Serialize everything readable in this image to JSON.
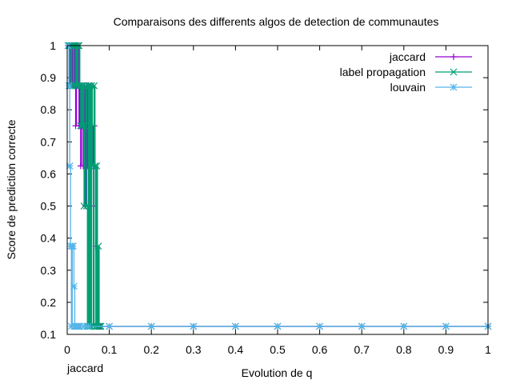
{
  "chart_data": {
    "type": "line",
    "title": "Comparaisons des differents algos de detection de communautes",
    "xlabel": "Evolution de q",
    "ylabel": "Score de prediction correcte",
    "bottom_note": "jaccard",
    "xlim": [
      0,
      1
    ],
    "ylim": [
      0.1,
      1
    ],
    "x_ticks": [
      "0",
      "0.1",
      "0.2",
      "0.3",
      "0.4",
      "0.5",
      "0.6",
      "0.7",
      "0.8",
      "0.9",
      "1"
    ],
    "y_ticks": [
      "0.1",
      "0.2",
      "0.3",
      "0.4",
      "0.5",
      "0.6",
      "0.7",
      "0.8",
      "0.9",
      "1"
    ],
    "legend_position": "top-right",
    "series": [
      {
        "name": "jaccard",
        "color": "#9400d3",
        "marker": "plus",
        "x": [
          0.002,
          0.004,
          0.006,
          0.008,
          0.01,
          0.012,
          0.014,
          0.016,
          0.018,
          0.02,
          0.022,
          0.024,
          0.026,
          0.028,
          0.03,
          0.032,
          0.034,
          0.036,
          0.038,
          0.04,
          0.042,
          0.044,
          0.046,
          0.048,
          0.05,
          0.052,
          0.054,
          0.056,
          0.058,
          0.06,
          0.062,
          0.064,
          0.066,
          0.068,
          0.07,
          0.072,
          0.074,
          0.076,
          0.078,
          0.08,
          0.1,
          0.2,
          0.3,
          0.4,
          0.5,
          0.6,
          0.7,
          0.8,
          0.9,
          1.0
        ],
        "y": [
          1,
          1,
          0.875,
          1,
          0.875,
          1,
          0.875,
          1,
          0.875,
          0.75,
          1,
          0.875,
          1,
          0.75,
          0.875,
          0.625,
          0.875,
          0.75,
          0.625,
          0.875,
          0.75,
          0.5,
          0.875,
          0.625,
          0.875,
          0.5,
          0.75,
          0.875,
          0.625,
          0.75,
          0.5,
          0.75,
          0.625,
          0.375,
          0.125,
          0.125,
          0.125,
          0.125,
          0.125,
          0.125,
          0.125,
          0.125,
          0.125,
          0.125,
          0.125,
          0.125,
          0.125,
          0.125,
          0.125,
          0.125
        ]
      },
      {
        "name": "label propagation",
        "color": "#009e73",
        "marker": "cross",
        "x": [
          0.002,
          0.004,
          0.006,
          0.008,
          0.01,
          0.012,
          0.014,
          0.016,
          0.018,
          0.02,
          0.022,
          0.024,
          0.026,
          0.028,
          0.03,
          0.032,
          0.034,
          0.036,
          0.038,
          0.04,
          0.042,
          0.044,
          0.046,
          0.048,
          0.05,
          0.052,
          0.054,
          0.056,
          0.058,
          0.06,
          0.062,
          0.064,
          0.066,
          0.068,
          0.07,
          0.072,
          0.074,
          0.076,
          0.078,
          0.08,
          0.1,
          0.2,
          0.3,
          0.4,
          0.5,
          0.6,
          0.7,
          0.8,
          0.9,
          1.0
        ],
        "y": [
          1,
          1,
          1,
          0.875,
          1,
          1,
          0.875,
          1,
          1,
          0.875,
          1,
          0.875,
          1,
          1,
          0.875,
          0.75,
          0.875,
          0.75,
          0.875,
          0.5,
          0.75,
          0.875,
          0.5,
          0.125,
          0.875,
          0.125,
          0.875,
          0.125,
          0.875,
          0.625,
          0.125,
          0.875,
          0.625,
          0.125,
          0.625,
          0.125,
          0.375,
          0.125,
          0.125,
          0.125,
          0.125,
          0.125,
          0.125,
          0.125,
          0.125,
          0.125,
          0.125,
          0.125,
          0.125,
          0.125
        ]
      },
      {
        "name": "louvain",
        "color": "#56b4e9",
        "marker": "star",
        "x": [
          0.002,
          0.004,
          0.006,
          0.008,
          0.01,
          0.012,
          0.014,
          0.016,
          0.018,
          0.02,
          0.022,
          0.024,
          0.026,
          0.028,
          0.03,
          0.04,
          0.05,
          0.1,
          0.2,
          0.3,
          0.4,
          0.5,
          0.6,
          0.7,
          0.8,
          0.9,
          1.0
        ],
        "y": [
          1,
          0.875,
          0.625,
          0.375,
          0.125,
          0.375,
          0.375,
          0.25,
          0.125,
          0.125,
          0.125,
          0.125,
          0.125,
          0.125,
          0.125,
          0.125,
          0.125,
          0.125,
          0.125,
          0.125,
          0.125,
          0.125,
          0.125,
          0.125,
          0.125,
          0.125,
          0.125
        ]
      }
    ]
  }
}
